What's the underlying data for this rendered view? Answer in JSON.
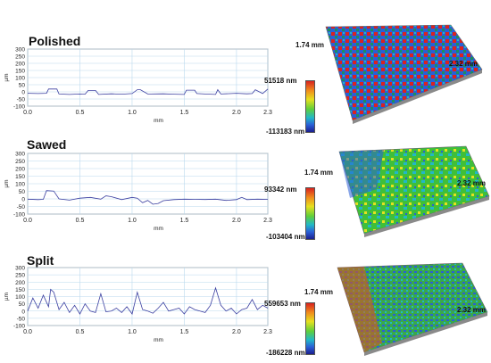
{
  "chart_data": [
    {
      "type": "line",
      "title": "Polished",
      "xlabel": "mm",
      "ylabel": "µm",
      "xlim": [
        0,
        2.3
      ],
      "ylim": [
        -100,
        300
      ],
      "x_ticks": [
        "0.0",
        "0.5",
        "1.0",
        "1.5",
        "2.0",
        "2.3"
      ],
      "y_ticks": [
        "300",
        "250",
        "200",
        "150",
        "100",
        "50",
        "0",
        "-50",
        "-100"
      ],
      "grid": true,
      "series": [
        {
          "x": [
            0.0,
            0.1,
            0.18,
            0.2,
            0.28,
            0.3,
            0.4,
            0.5,
            0.55,
            0.58,
            0.65,
            0.68,
            0.8,
            0.9,
            1.0,
            1.05,
            1.08,
            1.15,
            1.18,
            1.3,
            1.4,
            1.5,
            1.52,
            1.6,
            1.62,
            1.7,
            1.8,
            1.82,
            1.85,
            2.0,
            2.1,
            2.15,
            2.18,
            2.25,
            2.3
          ],
          "y": [
            -10,
            -12,
            -10,
            20,
            20,
            -15,
            -18,
            -15,
            -16,
            10,
            10,
            -18,
            -14,
            -16,
            -12,
            15,
            15,
            -15,
            -15,
            -14,
            -16,
            -18,
            12,
            12,
            -12,
            -15,
            -18,
            15,
            -15,
            -10,
            -14,
            -12,
            15,
            -12,
            20
          ]
        }
      ],
      "colorbar": {
        "max": "51518 nm",
        "min": "-113183 nm"
      },
      "surface": {
        "width_label": "2.32 mm",
        "depth_label": "1.74 mm"
      }
    },
    {
      "type": "line",
      "title": "Sawed",
      "xlabel": "mm",
      "ylabel": "µm",
      "xlim": [
        0,
        2.3
      ],
      "ylim": [
        -100,
        300
      ],
      "x_ticks": [
        "0.0",
        "0.5",
        "1.0",
        "1.5",
        "2.0",
        "2.3"
      ],
      "y_ticks": [
        "300",
        "250",
        "200",
        "150",
        "100",
        "50",
        "0",
        "-50",
        "-100"
      ],
      "grid": true,
      "series": [
        {
          "x": [
            0.0,
            0.1,
            0.15,
            0.18,
            0.25,
            0.3,
            0.4,
            0.5,
            0.6,
            0.7,
            0.75,
            0.8,
            0.9,
            1.0,
            1.05,
            1.1,
            1.15,
            1.2,
            1.25,
            1.3,
            1.4,
            1.5,
            1.6,
            1.7,
            1.8,
            1.9,
            2.0,
            2.05,
            2.1,
            2.2,
            2.3
          ],
          "y": [
            -2,
            -5,
            -3,
            55,
            52,
            0,
            -8,
            5,
            10,
            -2,
            20,
            15,
            -5,
            10,
            5,
            -25,
            -10,
            -35,
            -30,
            -12,
            -5,
            -2,
            -3,
            -4,
            -2,
            -10,
            -5,
            10,
            -5,
            -2,
            -3
          ]
        }
      ],
      "colorbar": {
        "max": "93342 nm",
        "min": "-103404 nm"
      },
      "surface": {
        "width_label": "2.32 mm",
        "depth_label": "1.74 mm"
      }
    },
    {
      "type": "line",
      "title": "Split",
      "xlabel": "mm",
      "ylabel": "µm",
      "xlim": [
        0,
        2.3
      ],
      "ylim": [
        -100,
        300
      ],
      "x_ticks": [
        "0.0",
        "0.5",
        "1.0",
        "1.5",
        "2.0",
        "2.3"
      ],
      "y_ticks": [
        "300",
        "250",
        "200",
        "150",
        "100",
        "50",
        "0",
        "-50",
        "-100"
      ],
      "grid": true,
      "series": [
        {
          "x": [
            0.0,
            0.05,
            0.1,
            0.15,
            0.2,
            0.22,
            0.25,
            0.3,
            0.35,
            0.4,
            0.45,
            0.5,
            0.55,
            0.6,
            0.65,
            0.7,
            0.75,
            0.8,
            0.85,
            0.9,
            0.95,
            1.0,
            1.05,
            1.1,
            1.15,
            1.2,
            1.25,
            1.3,
            1.35,
            1.4,
            1.45,
            1.5,
            1.55,
            1.6,
            1.65,
            1.7,
            1.75,
            1.8,
            1.85,
            1.9,
            1.95,
            2.0,
            2.05,
            2.1,
            2.15,
            2.2,
            2.25,
            2.3
          ],
          "y": [
            0,
            90,
            20,
            110,
            30,
            150,
            130,
            10,
            60,
            -10,
            40,
            -20,
            50,
            0,
            -10,
            120,
            -5,
            0,
            20,
            -10,
            30,
            -20,
            130,
            10,
            0,
            -15,
            20,
            60,
            0,
            10,
            20,
            -20,
            30,
            10,
            0,
            -10,
            40,
            160,
            40,
            0,
            20,
            -20,
            10,
            20,
            80,
            10,
            40,
            20
          ]
        }
      ],
      "colorbar": {
        "max": "559653 nm",
        "min": "-186228 nm"
      },
      "surface": {
        "width_label": "2.32 mm",
        "depth_label": "1.74 mm"
      }
    }
  ]
}
